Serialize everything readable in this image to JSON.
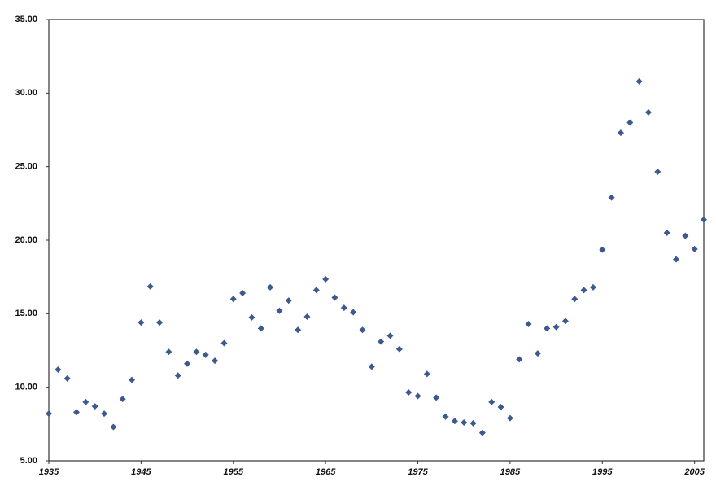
{
  "chart_data": {
    "type": "scatter",
    "color": "#3c5a8e",
    "grid": false,
    "x": [
      1935,
      1936,
      1937,
      1938,
      1939,
      1940,
      1941,
      1942,
      1943,
      1944,
      1945,
      1946,
      1947,
      1948,
      1949,
      1950,
      1951,
      1952,
      1953,
      1954,
      1955,
      1956,
      1957,
      1958,
      1959,
      1960,
      1961,
      1962,
      1963,
      1964,
      1965,
      1966,
      1967,
      1968,
      1969,
      1970,
      1971,
      1972,
      1973,
      1974,
      1975,
      1976,
      1977,
      1978,
      1979,
      1980,
      1981,
      1982,
      1983,
      1984,
      1985,
      1986,
      1987,
      1988,
      1989,
      1990,
      1991,
      1992,
      1993,
      1994,
      1995,
      1996,
      1997,
      1998,
      1999,
      2000,
      2001,
      2002,
      2003,
      2004,
      2005,
      2006
    ],
    "values": [
      8.2,
      11.2,
      10.6,
      8.3,
      9.0,
      8.7,
      8.2,
      7.3,
      9.2,
      10.5,
      14.4,
      16.85,
      14.4,
      12.4,
      10.8,
      11.6,
      12.4,
      12.2,
      11.8,
      13.0,
      16.0,
      16.4,
      14.75,
      14.0,
      16.8,
      15.2,
      15.9,
      13.9,
      14.8,
      16.6,
      17.35,
      16.1,
      15.4,
      15.1,
      13.9,
      11.4,
      13.1,
      13.5,
      12.6,
      9.65,
      9.4,
      10.9,
      9.3,
      8.0,
      7.7,
      7.6,
      7.55,
      6.9,
      9.0,
      8.65,
      7.9,
      11.9,
      14.3,
      12.3,
      14.0,
      14.1,
      14.5,
      16.0,
      16.6,
      16.8,
      19.35,
      22.9,
      27.3,
      28.0,
      30.8,
      28.7,
      24.65,
      20.5,
      18.7,
      20.3,
      19.4,
      21.4
    ],
    "xlim": [
      1935,
      2006
    ],
    "xticks": [
      1935,
      1945,
      1955,
      1965,
      1975,
      1985,
      1995,
      2005
    ],
    "ylim": [
      5,
      35
    ],
    "yticks": [
      {
        "value": 5,
        "label": "5.00"
      },
      {
        "value": 10,
        "label": "10.00"
      },
      {
        "value": 15,
        "label": "15.00"
      },
      {
        "value": 20,
        "label": "20.00"
      },
      {
        "value": 25,
        "label": "25.00"
      },
      {
        "value": 30,
        "label": "30.00"
      },
      {
        "value": 35,
        "label": "35.00"
      }
    ]
  }
}
